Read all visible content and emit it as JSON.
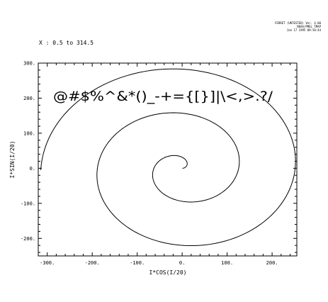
{
  "header": {
    "lines": [
      "FERRET (UNTESTED)  Ver. 4.00",
      "NOAA/PMEL TMAP",
      "Jan 17 1995 09:58:44"
    ]
  },
  "range_label": "X : 0.5 to 314.5",
  "chart_data": {
    "type": "line",
    "title": "",
    "xlabel": "I*COS(I/20)",
    "ylabel": "I*SIN(I/20)",
    "xlim": [
      -320,
      255
    ],
    "ylim": [
      -250,
      300
    ],
    "x_ticks": [
      -300,
      -200,
      -100,
      0,
      100,
      200
    ],
    "x_tick_labels": [
      "-300.",
      "-200.",
      "-100.",
      "0.",
      "100.",
      "200."
    ],
    "y_ticks": [
      -200,
      -100,
      0,
      100,
      200,
      300
    ],
    "y_tick_labels": [
      "-200.",
      "-100.",
      "0.",
      "100.",
      "200.",
      "300."
    ],
    "grid": false,
    "curve": {
      "x_expression": "I*COS(I/20)",
      "y_expression": "I*SIN(I/20)",
      "i_start": 0.5,
      "i_end": 314.5,
      "i_step": 1
    },
    "annotation": "@#$%^&*()_-+={[}]|\\<,>.?/"
  }
}
